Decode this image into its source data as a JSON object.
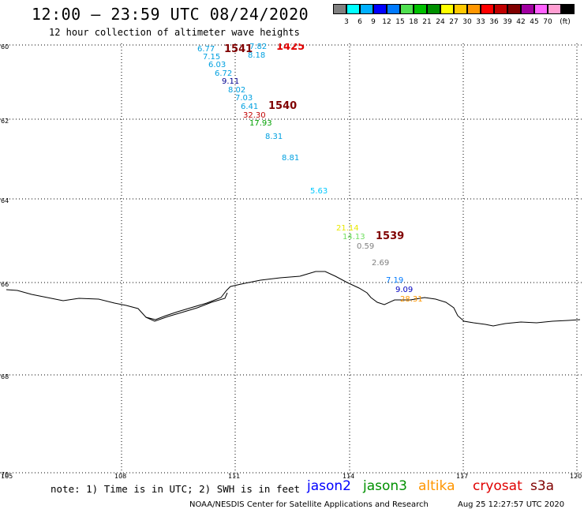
{
  "title": "12:00 – 23:59 UTC 08/24/2020",
  "subtitle": "12 hour collection of altimeter wave heights",
  "scale": {
    "unit": "(ft)",
    "colors": [
      "#808080",
      "#00ffff",
      "#00b0ff",
      "#0000ff",
      "#007aff",
      "#50e050",
      "#00c000",
      "#009000",
      "#ffff00",
      "#ffc800",
      "#ff9600",
      "#ff0000",
      "#c00000",
      "#800000",
      "#a000a0",
      "#ff60ff",
      "#ff9ed2",
      "#000000"
    ],
    "labels": [
      "3",
      "6",
      "9",
      "12",
      "15",
      "18",
      "21",
      "24",
      "27",
      "30",
      "33",
      "36",
      "39",
      "42",
      "45",
      "70"
    ]
  },
  "axes": {
    "lat_labels": [
      "60",
      "62",
      "64",
      "66",
      "68",
      "70"
    ],
    "lon_labels": [
      "105",
      "108",
      "111",
      "114",
      "117",
      "120"
    ]
  },
  "observations": [
    {
      "text": "6.77",
      "color": "#00a0e0"
    },
    {
      "text": "7.82",
      "color": "#00a0e0"
    },
    {
      "text": "7.15",
      "color": "#00a0e0"
    },
    {
      "text": "8.18",
      "color": "#00a0e0"
    },
    {
      "text": "6.03",
      "color": "#00a0e0"
    },
    {
      "text": "6.72",
      "color": "#00a0e0"
    },
    {
      "text": "9.11",
      "color": "#000090"
    },
    {
      "text": "8.02",
      "color": "#00a0e0"
    },
    {
      "text": "7.03",
      "color": "#00a0e0"
    },
    {
      "text": "6.41",
      "color": "#00a0e0"
    },
    {
      "text": "32.30",
      "color": "#c00000"
    },
    {
      "text": "17.93",
      "color": "#00a000"
    },
    {
      "text": "8.31",
      "color": "#00a0e0"
    },
    {
      "text": "8.81",
      "color": "#00a0e0"
    },
    {
      "text": "5.63",
      "color": "#00c8ff"
    },
    {
      "text": "21.14",
      "color": "#e8e800"
    },
    {
      "text": "14.13",
      "color": "#70e060"
    },
    {
      "text": "0.59",
      "color": "#808080"
    },
    {
      "text": "2.69",
      "color": "#808080"
    },
    {
      "text": "7.19",
      "color": "#007aff"
    },
    {
      "text": "9.09",
      "color": "#0000c0"
    },
    {
      "text": "28.31",
      "color": "#ff9600"
    }
  ],
  "times": [
    {
      "text": "1541",
      "color": "#800000"
    },
    {
      "text": "1425",
      "color": "#e00000"
    },
    {
      "text": "1540",
      "color": "#800000"
    },
    {
      "text": "1539",
      "color": "#800000"
    }
  ],
  "note": "note: 1) Time is in UTC; 2) SWH is in feet",
  "satellites": [
    {
      "name": "jason2",
      "color": "#0000ff"
    },
    {
      "name": "jason3",
      "color": "#009000"
    },
    {
      "name": "altika",
      "color": "#ff9600"
    },
    {
      "name": "cryosat",
      "color": "#e00000"
    },
    {
      "name": "s3a",
      "color": "#800000"
    }
  ],
  "credit": "NOAA/NESDIS Center for Satellite Applications and Research",
  "timestamp": "Aug 25 12:27:57 UTC 2020"
}
